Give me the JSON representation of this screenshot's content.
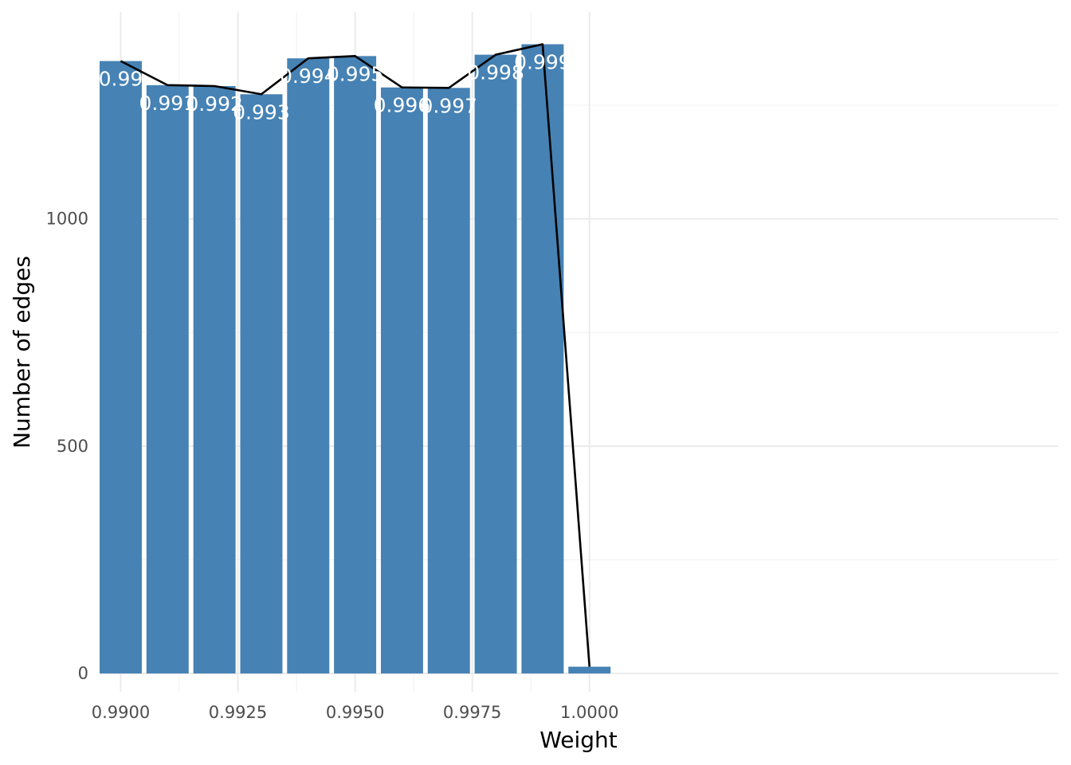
{
  "chart_data": {
    "type": "bar",
    "title": "",
    "xlabel": "Weight",
    "ylabel": "Number of edges",
    "x": [
      0.99,
      0.991,
      0.992,
      0.993,
      0.994,
      0.995,
      0.996,
      0.997,
      0.998,
      0.999,
      1.0
    ],
    "values": [
      1347,
      1294,
      1292,
      1274,
      1353,
      1358,
      1289,
      1288,
      1361,
      1384,
      15
    ],
    "bar_labels": [
      "0.99",
      "0.991",
      "0.992",
      "0.993",
      "0.994",
      "0.995",
      "0.996",
      "0.997",
      "0.998",
      "0.999",
      ""
    ],
    "line_overlay": {
      "x": [
        0.99,
        0.991,
        0.992,
        0.993,
        0.994,
        0.995,
        0.996,
        0.997,
        0.998,
        0.999,
        1.0
      ],
      "values": [
        1347,
        1294,
        1292,
        1274,
        1353,
        1358,
        1289,
        1288,
        1361,
        1384,
        15
      ]
    },
    "xlim": [
      0.98955,
      1.01
    ],
    "ylim": [
      -40,
      1455
    ],
    "x_ticks": [
      0.99,
      0.9925,
      0.995,
      0.9975,
      1.0
    ],
    "x_tick_labels": [
      "0.9900",
      "0.9925",
      "0.9950",
      "0.9975",
      "1.0000"
    ],
    "x_minor_ticks": [
      0.99125,
      0.99375,
      0.99625,
      0.99875
    ],
    "y_ticks": [
      0,
      500,
      1000
    ],
    "y_tick_labels": [
      "0",
      "500",
      "1000"
    ],
    "y_minor_ticks": [
      250,
      750,
      1250
    ],
    "grid": true,
    "legend": "none",
    "colors": {
      "bar": "#4682b4",
      "line": "#000000",
      "bar_label": "#ffffff"
    }
  }
}
